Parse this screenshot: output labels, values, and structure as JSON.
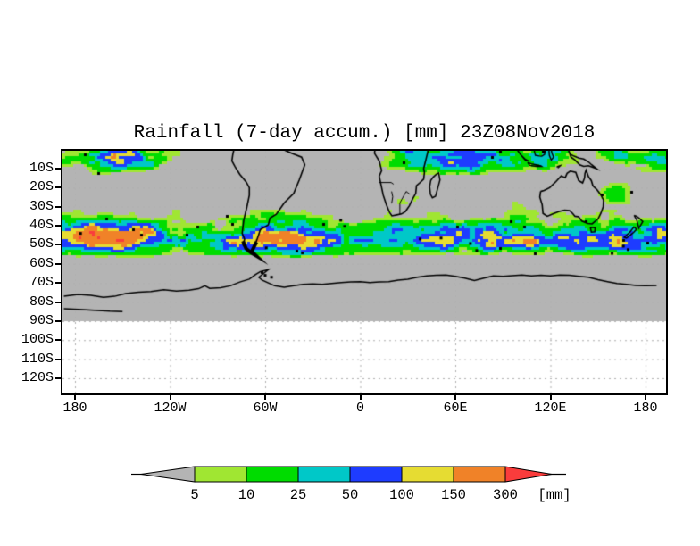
{
  "chart_data": {
    "type": "heatmap",
    "title": "Rainfall (7-day accum.) [mm] 23Z08Nov2018",
    "variable": "Rainfall",
    "accumulation_period": "7-day accum.",
    "valid_time": "23Z08Nov2018",
    "units": "mm",
    "x_axis": {
      "ticks": [
        "180",
        "120W",
        "60W",
        "0",
        "60E",
        "120E",
        "180"
      ]
    },
    "y_axis": {
      "ticks": [
        "10S",
        "20S",
        "30S",
        "40S",
        "50S",
        "60S",
        "70S",
        "80S",
        "90S",
        "100S",
        "110S",
        "120S"
      ]
    },
    "colorbar": {
      "unit_label": "[mm]",
      "tick_labels": [
        "5",
        "10",
        "25",
        "50",
        "100",
        "150",
        "300"
      ],
      "levels_mm": [
        5,
        10,
        25,
        50,
        100,
        150,
        300
      ],
      "segment_colors": [
        "#a0e632",
        "#00dc00",
        "#00c8c8",
        "#1e3cff",
        "#e6dc32",
        "#f08228"
      ],
      "below_min_color": "#b4b4b4",
      "above_max_color": "#fa3c3c"
    },
    "map_style": {
      "no_data_background": "#b4b4b4",
      "out_of_domain_background": "#ffffff",
      "coastline_color": "#000000",
      "gridline_color": "#b0b0b0",
      "frame_color": "#000000"
    },
    "field_description": "7-day accumulated rainfall shaded over oceans and land from the equator to about 60S; heaviest bands along the mid-latitude storm track (35S-60S) and tropical bands near 180W, over the Indian Ocean and northeast of Australia; gray no-data region from 60S to 90S with Antarctic coastline; blank area south of 90S with dotted gridlines"
  }
}
